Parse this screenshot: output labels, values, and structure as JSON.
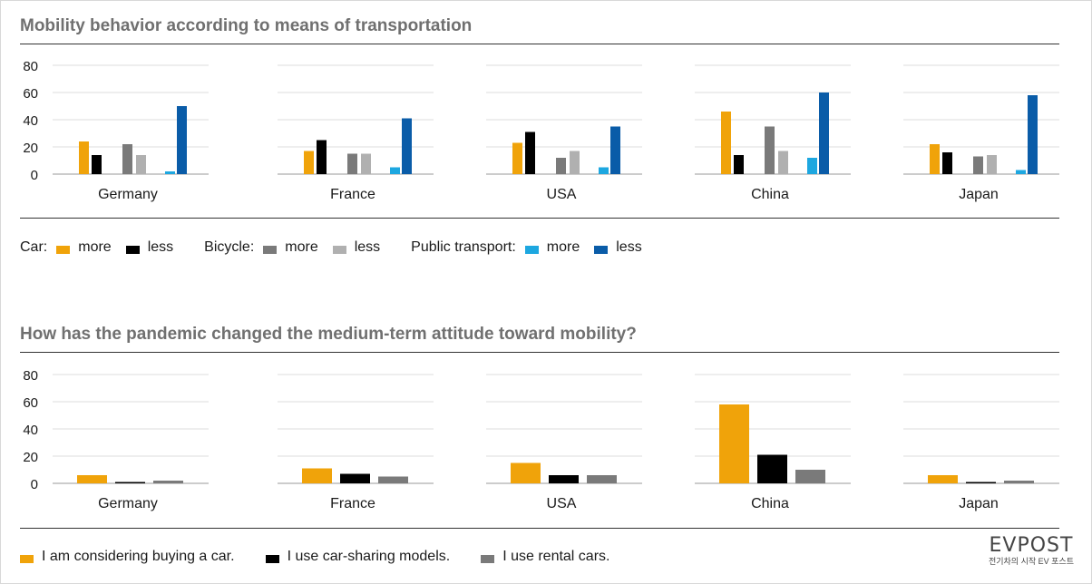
{
  "colors": {
    "car_more": "#F0A30A",
    "car_less": "#000000",
    "bicycle_more": "#7A7A7A",
    "bicycle_less": "#B0B0B0",
    "pt_more": "#1DA7E0",
    "pt_less": "#0A5CA8",
    "considering": "#F0A30A",
    "sharing": "#000000",
    "rental": "#7A7A7A"
  },
  "chart_data": [
    {
      "type": "bar",
      "title": "Mobility behavior according to means of transportation",
      "categories": [
        "Germany",
        "France",
        "USA",
        "China",
        "Japan"
      ],
      "yticks": [
        "0",
        "20",
        "40",
        "60",
        "80"
      ],
      "ylim": [
        0,
        80
      ],
      "grid": true,
      "series": [
        {
          "name": "Car: more",
          "color_key": "car_more",
          "values": [
            24,
            17,
            23,
            46,
            22
          ]
        },
        {
          "name": "Car: less",
          "color_key": "car_less",
          "values": [
            14,
            25,
            31,
            14,
            16
          ]
        },
        {
          "name": "Bicycle: more",
          "color_key": "bicycle_more",
          "values": [
            22,
            15,
            12,
            35,
            13
          ]
        },
        {
          "name": "Bicycle: less",
          "color_key": "bicycle_less",
          "values": [
            14,
            15,
            17,
            17,
            14
          ]
        },
        {
          "name": "Public transport: more",
          "color_key": "pt_more",
          "values": [
            2,
            5,
            5,
            12,
            3
          ]
        },
        {
          "name": "Public transport: less",
          "color_key": "pt_less",
          "values": [
            50,
            41,
            35,
            60,
            58
          ]
        }
      ]
    },
    {
      "type": "bar",
      "title": "How has the pandemic changed the medium-term attitude toward mobility?",
      "categories": [
        "Germany",
        "France",
        "USA",
        "China",
        "Japan"
      ],
      "yticks": [
        "0",
        "20",
        "40",
        "60",
        "80"
      ],
      "ylim": [
        0,
        80
      ],
      "grid": true,
      "series": [
        {
          "name": "I am considering buying a car.",
          "color_key": "considering",
          "values": [
            6,
            11,
            15,
            58,
            6
          ]
        },
        {
          "name": "I use car-sharing models.",
          "color_key": "sharing",
          "values": [
            1,
            7,
            6,
            21,
            1
          ]
        },
        {
          "name": "I use rental cars.",
          "color_key": "rental",
          "values": [
            2,
            5,
            6,
            10,
            2
          ]
        }
      ]
    }
  ],
  "legend1": {
    "car_label": "Car:",
    "bicycle_label": "Bicycle:",
    "pt_label": "Public transport:",
    "more": "more",
    "less": "less"
  },
  "legend2": {
    "considering": "I am considering buying a car.",
    "sharing": "I use car-sharing models.",
    "rental": "I use rental cars."
  },
  "logo": {
    "mark": "EVPOST",
    "tagline": "전기차의 시작 EV 포스트"
  }
}
